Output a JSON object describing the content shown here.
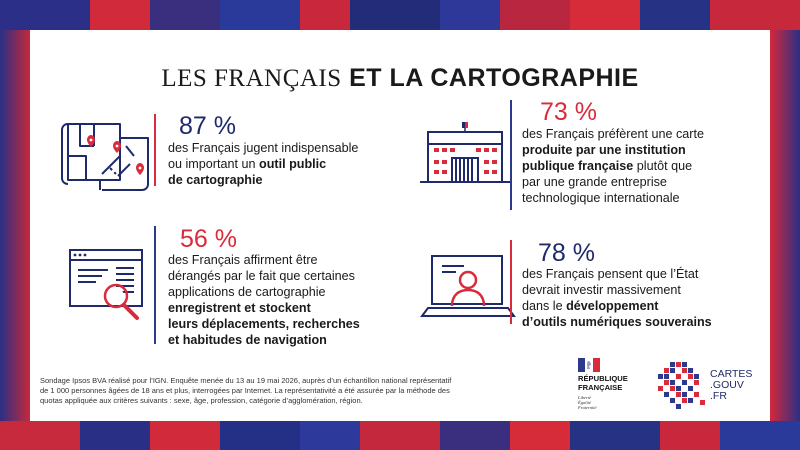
{
  "title": {
    "light": "LES FRANÇAIS",
    "bold": "ET LA CARTOGRAPHIE"
  },
  "stats": [
    {
      "percent": "87 %",
      "lines": [
        {
          "text": "des Français jugent indispensable",
          "bold": ""
        },
        {
          "text": "ou important un ",
          "bold": "outil public"
        },
        {
          "text": "",
          "bold": "de cartographie"
        }
      ]
    },
    {
      "percent": "73 %",
      "lines": [
        {
          "text": "des Français préfèrent une carte",
          "bold": ""
        },
        {
          "text": "",
          "bold": "produite par une institution"
        },
        {
          "text": "",
          "bold": "publique française",
          "rest": " plutôt que"
        },
        {
          "text": "par une grande entreprise",
          "bold": ""
        },
        {
          "text": "technologique internationale",
          "bold": ""
        }
      ]
    },
    {
      "percent": "56 %",
      "lines": [
        {
          "text": "des Français affirment être",
          "bold": ""
        },
        {
          "text": "dérangés par le fait que certaines",
          "bold": ""
        },
        {
          "text": "applications de cartographie",
          "bold": ""
        },
        {
          "text": "",
          "bold": "enregistrent et stockent"
        },
        {
          "text": "",
          "bold": "leurs déplacements, recherches"
        },
        {
          "text": "",
          "bold": "et habitudes de navigation"
        }
      ]
    },
    {
      "percent": "78 %",
      "lines": [
        {
          "text": "des Français pensent que l’État",
          "bold": ""
        },
        {
          "text": "devrait investir massivement",
          "bold": ""
        },
        {
          "text": "dans le ",
          "bold": "développement"
        },
        {
          "text": "",
          "bold": "d’outils numériques souverains"
        }
      ]
    }
  ],
  "footnote": [
    "Sondage Ipsos BVA réalisé pour l’IGN. Enquête menée du 13 au 19 mai 2026, auprès d’un échantillon national représentatif",
    "de 1 000 personnes âgées de 18 ans et plus, interrogées par Internet. La représentativité a été assurée par la méthode des",
    "quotas appliquée aux critères suivants : sexe, âge, profession, catégorie d’agglomération, région."
  ],
  "republique": {
    "line1": "RÉPUBLIQUE",
    "line2": "FRANÇAISE",
    "motto": [
      "Liberté",
      "Égalité",
      "Fraternité"
    ]
  },
  "cartes_gouv": {
    "line1": "CARTES",
    "line2": ".GOUV",
    "line3": ".FR"
  },
  "colors": {
    "navy": "#1f2a6b",
    "red": "#d92b3a",
    "accent_blue": "#2d3a8c"
  },
  "icons": [
    "map-pins-icon",
    "institution-building-icon",
    "browser-search-icon",
    "laptop-user-icon"
  ]
}
